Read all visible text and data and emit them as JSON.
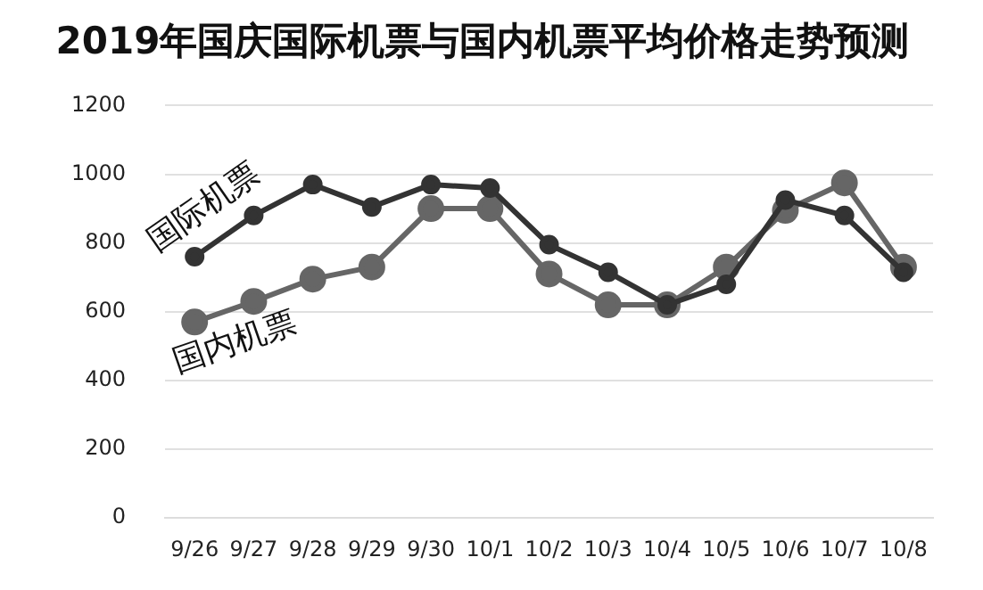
{
  "chart_data": {
    "type": "line",
    "title": "2019年国庆国际机票与国内机票平均价格走势预测",
    "categories": [
      "9/26",
      "9/27",
      "9/28",
      "9/29",
      "9/30",
      "10/1",
      "10/2",
      "10/3",
      "10/4",
      "10/5",
      "10/6",
      "10/7",
      "10/8"
    ],
    "series": [
      {
        "name": "国际机票",
        "color": "#333333",
        "values": [
          760,
          880,
          970,
          905,
          970,
          960,
          795,
          715,
          620,
          680,
          925,
          880,
          715
        ]
      },
      {
        "name": "国内机票",
        "color": "#666666",
        "values": [
          570,
          630,
          695,
          730,
          900,
          900,
          710,
          620,
          620,
          730,
          895,
          975,
          730
        ]
      }
    ],
    "ylim": [
      0,
      1200
    ],
    "yticks": [
      0,
      200,
      400,
      600,
      800,
      1000,
      1200
    ],
    "grid": "y",
    "legend": false,
    "marker": "circle",
    "line_style": "solid"
  }
}
